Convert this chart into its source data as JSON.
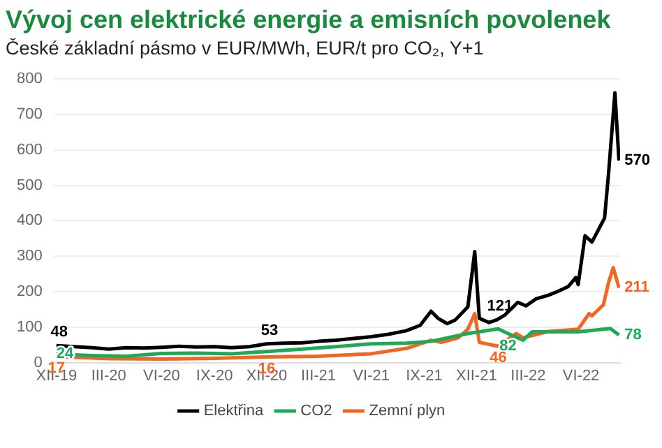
{
  "chart_data": {
    "type": "line",
    "title": "Vývoj cen elektrické energie a emisních povolenek",
    "subtitle": "České základní pásmo v EUR/MWh, EUR/t pro CO₂, Y+1",
    "xlim": [
      "2019-11-26",
      "2022-08-08"
    ],
    "xticks": [
      {
        "value": "2019-12-01",
        "label": "XII-19"
      },
      {
        "value": "2020-03-01",
        "label": "III-20"
      },
      {
        "value": "2020-06-01",
        "label": "VI-20"
      },
      {
        "value": "2020-09-01",
        "label": "IX-20"
      },
      {
        "value": "2020-12-01",
        "label": "XII-20"
      },
      {
        "value": "2021-03-01",
        "label": "III-21"
      },
      {
        "value": "2021-06-01",
        "label": "VI-21"
      },
      {
        "value": "2021-09-01",
        "label": "IX-21"
      },
      {
        "value": "2021-12-01",
        "label": "XII-21"
      },
      {
        "value": "2022-03-01",
        "label": "III-22"
      },
      {
        "value": "2022-06-01",
        "label": "VI-22"
      }
    ],
    "ylim": [
      0,
      800
    ],
    "yticks": [
      0,
      100,
      200,
      300,
      400,
      500,
      600,
      700,
      800
    ],
    "grid": "y",
    "legend": "bottom",
    "marker": "none",
    "line_style": "solid",
    "series": [
      {
        "name": "Elektřina",
        "color": "#000000",
        "x": [
          "2019-12-01",
          "2020-01-01",
          "2020-02-01",
          "2020-03-01",
          "2020-04-01",
          "2020-05-01",
          "2020-06-01",
          "2020-07-01",
          "2020-08-01",
          "2020-09-01",
          "2020-10-01",
          "2020-11-01",
          "2020-12-01",
          "2021-01-01",
          "2021-02-01",
          "2021-03-01",
          "2021-04-01",
          "2021-05-01",
          "2021-06-01",
          "2021-07-01",
          "2021-08-01",
          "2021-08-25",
          "2021-09-13",
          "2021-09-25",
          "2021-10-11",
          "2021-10-25",
          "2021-11-16",
          "2021-11-28",
          "2021-12-06",
          "2021-12-23",
          "2022-01-06",
          "2022-01-20",
          "2022-02-11",
          "2022-02-25",
          "2022-03-15",
          "2022-04-05",
          "2022-04-22",
          "2022-05-10",
          "2022-05-23",
          "2022-05-27",
          "2022-06-08",
          "2022-06-20",
          "2022-07-12",
          "2022-07-19",
          "2022-07-30",
          "2022-08-06"
        ],
        "values": [
          48,
          45,
          42,
          38,
          42,
          41,
          43,
          46,
          44,
          45,
          42,
          45,
          53,
          55,
          56,
          60,
          63,
          68,
          73,
          80,
          90,
          105,
          145,
          125,
          110,
          120,
          157,
          313,
          125,
          113,
          121,
          135,
          170,
          160,
          180,
          190,
          201,
          215,
          240,
          220,
          358,
          340,
          408,
          535,
          761,
          570
        ],
        "value_labels": [
          "48",
          null,
          null,
          null,
          null,
          null,
          null,
          null,
          null,
          null,
          null,
          null,
          "53",
          null,
          null,
          null,
          null,
          null,
          null,
          null,
          null,
          null,
          null,
          null,
          null,
          null,
          null,
          null,
          null,
          null,
          "121",
          null,
          null,
          null,
          null,
          null,
          null,
          null,
          null,
          null,
          null,
          null,
          null,
          null,
          null,
          "570"
        ]
      },
      {
        "name": "CO2",
        "color": "#1fa855",
        "x": [
          "2019-12-01",
          "2020-02-01",
          "2020-04-01",
          "2020-06-01",
          "2020-08-01",
          "2020-10-01",
          "2020-12-01",
          "2021-02-01",
          "2021-04-01",
          "2021-06-01",
          "2021-08-01",
          "2021-09-13",
          "2021-11-16",
          "2022-01-08",
          "2022-01-25",
          "2022-02-20",
          "2022-03-08",
          "2022-05-27",
          "2022-07-22",
          "2022-08-06"
        ],
        "values": [
          24,
          20,
          18,
          26,
          27,
          25,
          31,
          38,
          45,
          53,
          55,
          60,
          82,
          95,
          82,
          63,
          87,
          87,
          96,
          78
        ],
        "value_labels": [
          "24",
          null,
          null,
          null,
          null,
          null,
          null,
          null,
          null,
          null,
          null,
          null,
          null,
          null,
          "82",
          null,
          null,
          null,
          null,
          "78"
        ]
      },
      {
        "name": "Zemní plyn",
        "color": "#f26522",
        "x": [
          "2019-12-01",
          "2020-03-01",
          "2020-06-01",
          "2020-09-01",
          "2020-12-01",
          "2021-03-01",
          "2021-06-01",
          "2021-08-01",
          "2021-09-13",
          "2021-10-01",
          "2021-10-30",
          "2021-11-16",
          "2021-11-28",
          "2021-12-06",
          "2022-01-08",
          "2022-02-08",
          "2022-02-20",
          "2022-04-06",
          "2022-05-27",
          "2022-06-15",
          "2022-06-20",
          "2022-07-10",
          "2022-07-19",
          "2022-07-27",
          "2022-08-06"
        ],
        "values": [
          17,
          11,
          10,
          12,
          16,
          18,
          25,
          40,
          63,
          57,
          70,
          94,
          138,
          57,
          46,
          82,
          70,
          88,
          94,
          138,
          132,
          163,
          226,
          268,
          211
        ],
        "value_labels": [
          "17",
          null,
          null,
          null,
          "16",
          null,
          null,
          null,
          null,
          null,
          null,
          null,
          null,
          null,
          "46",
          null,
          null,
          null,
          null,
          null,
          null,
          null,
          null,
          null,
          "211"
        ]
      }
    ]
  }
}
